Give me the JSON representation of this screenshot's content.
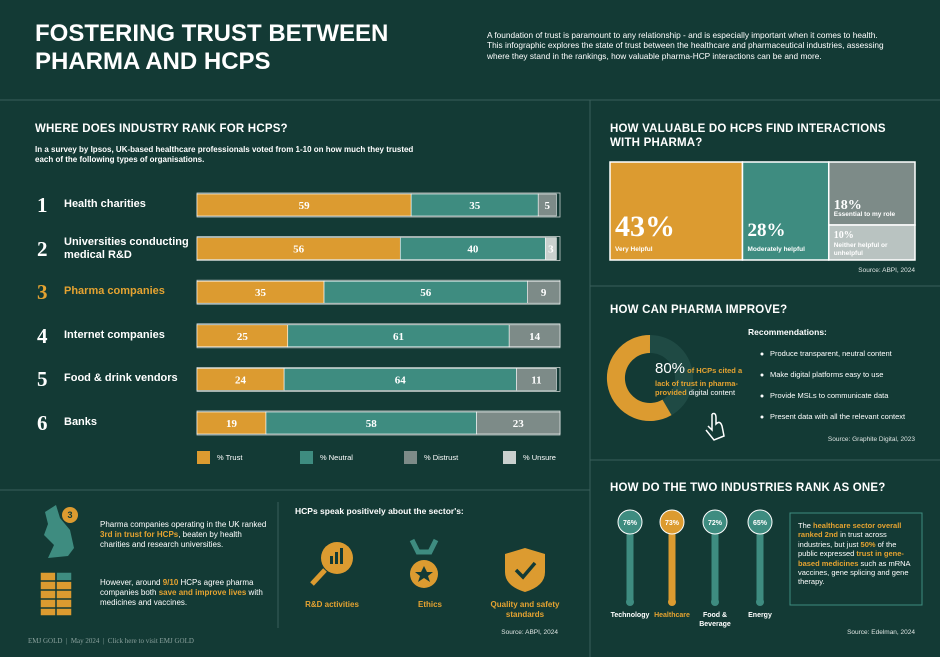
{
  "header": {
    "title": "FOSTERING TRUST BETWEEN PHARMA AND HCPS",
    "description": "A foundation of trust is paramount to any relationship - and is especially important when it comes to health. This infographic explores the state of trust between the healthcare and pharmaceutical industries, assessing where they stand in the rankings, how valuable pharma-HCP interactions can be and more."
  },
  "ranking": {
    "heading": "WHERE DOES INDUSTRY RANK FOR HCPS?",
    "intro": "In a survey by Ipsos, UK-based healthcare professionals voted from 1-10 on how much they trusted each of the following types of organisations.",
    "rows": [
      {
        "rank": "1",
        "label": "Health charities",
        "values": [
          59,
          35,
          5,
          null
        ]
      },
      {
        "rank": "2",
        "label": "Universities conducting medical R&D",
        "values": [
          56,
          40,
          null,
          3
        ]
      },
      {
        "rank": "3",
        "label": "Pharma companies",
        "values": [
          35,
          56,
          9,
          null
        ],
        "color": "#e5a331"
      },
      {
        "rank": "4",
        "label": "Internet companies",
        "values": [
          25,
          61,
          14,
          null
        ]
      },
      {
        "rank": "5",
        "label": "Food & drink vendors",
        "values": [
          24,
          64,
          11,
          null
        ]
      },
      {
        "rank": "6",
        "label": "Banks",
        "values": [
          19,
          58,
          23,
          null
        ]
      }
    ],
    "legend": [
      {
        "name": "% Trust",
        "color": "#dc9b30"
      },
      {
        "name": "% Neutral",
        "color": "#3e8c80"
      },
      {
        "name": "% Distrust",
        "color": "#7d8b88"
      },
      {
        "name": "% Unsure",
        "color": "#c9d0ce"
      }
    ]
  },
  "uk": {
    "badge": "3",
    "text1": [
      "Pharma companies operating in the UK ranked ",
      "3rd in trust for HCPs",
      ", beaten by health charities and research universities."
    ],
    "text2": [
      "However, around ",
      "9/10",
      " HCPs agree pharma companies both ",
      "save and improve lives",
      " with medicines and vaccines."
    ]
  },
  "positive": {
    "heading": "HCPs speak positively about the sector's:",
    "items": [
      "R&D activities",
      "Ethics",
      "Quality and safety standards"
    ],
    "source": "Source: ABPI, 2024"
  },
  "footer": "EMJ GOLD  |  May 2024  |  Click here to visit EMJ GOLD",
  "treemap": {
    "heading": "HOW VALUABLE DO HCPS FIND INTERACTIONS WITH PHARMA?",
    "items": [
      {
        "value": 43,
        "value_label": "43%",
        "label": "Very Helpful",
        "color": "#dc9b30"
      },
      {
        "value": 28,
        "value_label": "28%",
        "label": "Moderately helpful",
        "color": "#3e8c80"
      },
      {
        "value": 18,
        "value_label": "18%",
        "label": "Essential to my role",
        "color": "#7d8b88"
      },
      {
        "value": 10,
        "value_label": "10%",
        "label": "Neither helpful or unhelpful",
        "color": "#b9c3c1"
      }
    ],
    "source": "Source: ABPI, 2024"
  },
  "improve": {
    "heading": "HOW CAN PHARMA IMPROVE?",
    "stat": [
      "80%",
      " of HCPs cited a lack of trust in pharma-provided ",
      "digital content"
    ],
    "rec_title": "Recommendations:",
    "recommendations": [
      "Produce transparent, neutral content",
      "Make digital platforms easy to use",
      "Provide MSLs to communicate data",
      "Present data with all the relevant context"
    ],
    "source": "Source: Graphite Digital, 2023"
  },
  "industries": {
    "heading": "HOW DO THE TWO INDUSTRIES RANK AS ONE?",
    "items": [
      {
        "name": "Technology",
        "score": "76%",
        "color": "#3e8c80"
      },
      {
        "name": "Healthcare",
        "score": "73%",
        "color": "#dc9b30"
      },
      {
        "name": "Food & Beverage",
        "score": "72%",
        "color": "#3e8c80"
      },
      {
        "name": "Energy",
        "score": "65%",
        "color": "#3e8c80"
      }
    ],
    "note": [
      "The ",
      "healthcare sector overall ranked 2nd",
      " in trust across industries, but just ",
      "50%",
      " of the public expressed ",
      "trust in gene-based medicines",
      " such as mRNA vaccines, gene splicing and gene therapy."
    ],
    "source": "Source: Edelman, 2024"
  }
}
